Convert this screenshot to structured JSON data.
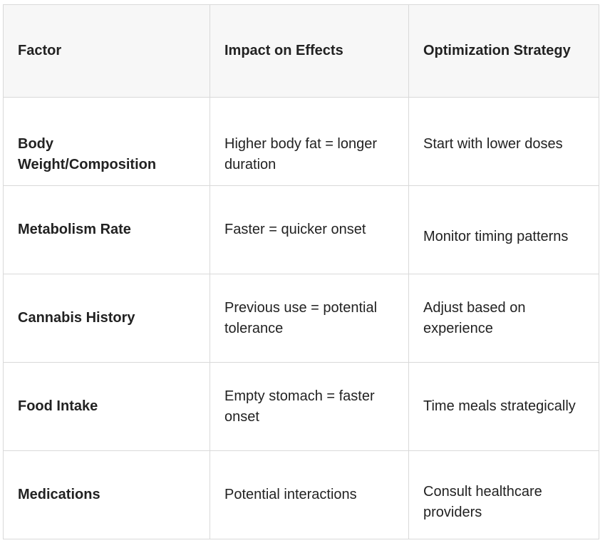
{
  "table": {
    "headers": {
      "factor": "Factor",
      "impact": "Impact on Effects",
      "strategy": "Optimization Strategy"
    },
    "rows": [
      {
        "factor": "Body Weight/Composition",
        "impact": "Higher body fat = longer duration",
        "strategy": "Start with lower doses"
      },
      {
        "factor": "Metabolism Rate",
        "impact": "Faster = quicker onset",
        "strategy": "Monitor timing patterns"
      },
      {
        "factor": "Cannabis History",
        "impact": "Previous use = potential tolerance",
        "strategy": "Adjust based on experience"
      },
      {
        "factor": "Food Intake",
        "impact": "Empty stomach = faster onset",
        "strategy": "Time meals strategically"
      },
      {
        "factor": "Medications",
        "impact": "Potential interactions",
        "strategy": "Consult healthcare providers"
      }
    ]
  }
}
